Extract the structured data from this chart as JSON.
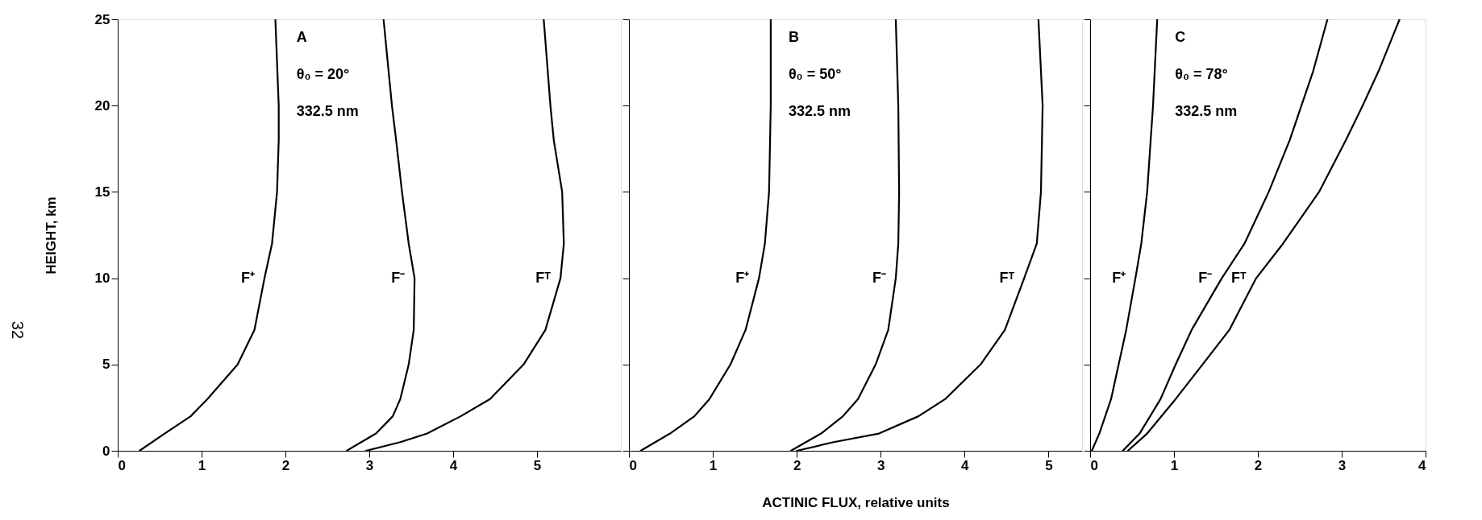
{
  "chart_data": [
    {
      "type": "line",
      "ylabel": "HEIGHT, km",
      "xlim": [
        0,
        6
      ],
      "ylim": [
        0,
        25
      ],
      "xticks": [
        0,
        1,
        2,
        3,
        4,
        5
      ],
      "yticks": [
        0,
        5,
        10,
        15,
        20,
        25
      ],
      "grid": false,
      "legend": false,
      "line_style": "solid",
      "annotations": [
        "A",
        "θ₀ = 20°",
        "332.5 nm",
        "32"
      ],
      "series": [
        {
          "name": "F⁺",
          "color": "#000000",
          "x": [
            0.26,
            0.56,
            0.87,
            1.07,
            1.43,
            1.63,
            1.75,
            1.84,
            1.9,
            1.92,
            1.92,
            1.88
          ],
          "values": [
            0,
            1,
            2,
            3,
            5,
            7,
            10,
            12,
            15,
            18,
            20,
            25
          ]
        },
        {
          "name": "F⁻",
          "color": "#000000",
          "x": [
            2.73,
            3.08,
            3.28,
            3.37,
            3.47,
            3.53,
            3.54,
            3.47,
            3.39,
            3.32,
            3.27,
            3.17
          ],
          "values": [
            0,
            1,
            2,
            3,
            5,
            7,
            10,
            12,
            15,
            18,
            20,
            25
          ]
        },
        {
          "name": "Fᵀ",
          "color": "#000000",
          "x": [
            2.96,
            3.37,
            3.69,
            4.09,
            4.44,
            4.84,
            5.1,
            5.28,
            5.32,
            5.3,
            5.2,
            5.16,
            5.08
          ],
          "values": [
            0,
            0.5,
            1,
            2,
            3,
            5,
            7,
            10,
            12,
            15,
            18,
            20,
            25
          ]
        }
      ]
    },
    {
      "type": "line",
      "xlabel": "ACTINIC FLUX, relative units",
      "xlim": [
        0,
        5.4
      ],
      "ylim": [
        0,
        25
      ],
      "xticks": [
        0,
        1,
        2,
        3,
        4,
        5
      ],
      "yticks": [
        0,
        5,
        10,
        15,
        20,
        25
      ],
      "tick_labels": "x",
      "grid": false,
      "legend": false,
      "line_style": "solid",
      "annotations": [
        "B",
        "θ₀ = 50°",
        "332.5 nm"
      ],
      "series": [
        {
          "name": "F⁺",
          "color": "#000000",
          "x": [
            0.14,
            0.49,
            0.78,
            0.96,
            1.21,
            1.39,
            1.55,
            1.62,
            1.67,
            1.69,
            1.69
          ],
          "values": [
            0,
            1,
            2,
            3,
            5,
            7,
            10,
            12,
            15,
            20,
            25
          ]
        },
        {
          "name": "F⁻",
          "color": "#000000",
          "x": [
            1.93,
            2.29,
            2.55,
            2.73,
            2.94,
            3.09,
            3.18,
            3.21,
            3.22,
            3.21,
            3.18
          ],
          "values": [
            0,
            1,
            2,
            3,
            5,
            7,
            10,
            12,
            15,
            20,
            25
          ]
        },
        {
          "name": "Fᵀ",
          "color": "#000000",
          "x": [
            2.0,
            2.44,
            2.98,
            3.45,
            3.77,
            4.19,
            4.48,
            4.71,
            4.86,
            4.91,
            4.93,
            4.88
          ],
          "values": [
            0,
            0.5,
            1,
            2,
            3,
            5,
            7,
            10,
            12,
            15,
            20,
            25
          ]
        }
      ]
    },
    {
      "type": "line",
      "xlim": [
        0,
        4
      ],
      "ylim": [
        0,
        25
      ],
      "xticks": [
        0,
        1,
        2,
        3,
        4
      ],
      "yticks": [
        0,
        5,
        10,
        15,
        20,
        25
      ],
      "tick_labels": "x",
      "grid": false,
      "legend": false,
      "line_style": "solid",
      "annotations": [
        "C",
        "θ₀ = 78°",
        "332.5 nm"
      ],
      "series": [
        {
          "name": "F⁺",
          "color": "#000000",
          "x": [
            0.02,
            0.11,
            0.18,
            0.25,
            0.34,
            0.43,
            0.54,
            0.61,
            0.68,
            0.75,
            0.8
          ],
          "values": [
            0,
            1,
            2,
            3,
            5,
            7,
            10,
            12,
            15,
            20,
            25
          ]
        },
        {
          "name": "F⁻",
          "color": "#000000",
          "x": [
            0.39,
            0.59,
            0.84,
            1.02,
            1.21,
            1.57,
            1.84,
            2.13,
            2.38,
            2.52,
            2.66,
            2.83
          ],
          "values": [
            0,
            1,
            3,
            5,
            7,
            10,
            12,
            15,
            18,
            20,
            22,
            25
          ]
        },
        {
          "name": "Fᵀ",
          "color": "#000000",
          "x": [
            0.45,
            0.68,
            1.02,
            1.34,
            1.66,
            1.98,
            2.3,
            2.73,
            3.05,
            3.25,
            3.44,
            3.69
          ],
          "values": [
            0,
            1,
            3,
            5,
            7,
            10,
            12,
            15,
            18,
            20,
            22,
            25
          ]
        }
      ]
    }
  ]
}
